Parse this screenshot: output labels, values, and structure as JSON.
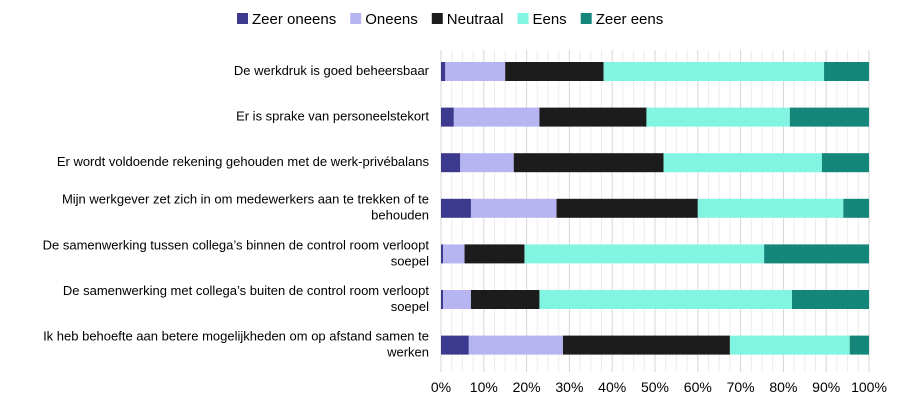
{
  "chart_data": {
    "type": "bar",
    "orientation": "horizontal",
    "stacked": true,
    "normalized_percent": true,
    "categories": [
      [
        "De werkdruk is goed beheersbaar"
      ],
      [
        "Er is sprake van personeelstekort"
      ],
      [
        "Er wordt voldoende rekening gehouden met de werk-privébalans"
      ],
      [
        "Mijn werkgever zet zich in om medewerkers aan te trekken of te",
        "behouden"
      ],
      [
        "De samenwerking tussen collega’s binnen de control room verloopt",
        "soepel"
      ],
      [
        "De samenwerking met collega’s buiten de control room verloopt",
        "soepel"
      ],
      [
        "Ik heb behoefte aan betere mogelijkheden om op afstand samen te",
        "werken"
      ]
    ],
    "series": [
      {
        "name": "Zeer oneens",
        "color": "#3b3a8f",
        "values": [
          1,
          3,
          4.5,
          7,
          0.5,
          0.5,
          6.5
        ]
      },
      {
        "name": "Oneens",
        "color": "#b7b4f2",
        "values": [
          14,
          20,
          12.5,
          20,
          5,
          6.5,
          22
        ]
      },
      {
        "name": "Neutraal",
        "color": "#1c1c1c",
        "values": [
          23,
          25,
          35,
          33,
          14,
          16,
          39
        ]
      },
      {
        "name": "Eens",
        "color": "#82f5e2",
        "values": [
          51.5,
          33.5,
          37,
          34,
          56,
          59,
          28
        ]
      },
      {
        "name": "Zeer eens",
        "color": "#14877a",
        "values": [
          10.5,
          18.5,
          11,
          6,
          24.5,
          18,
          4.5
        ]
      }
    ],
    "xlim": [
      0,
      100
    ],
    "xticks": [
      "0%",
      "10%",
      "20%",
      "30%",
      "40%",
      "50%",
      "60%",
      "70%",
      "80%",
      "90%",
      "100%"
    ],
    "grid": true,
    "legend_position": "top-center"
  }
}
